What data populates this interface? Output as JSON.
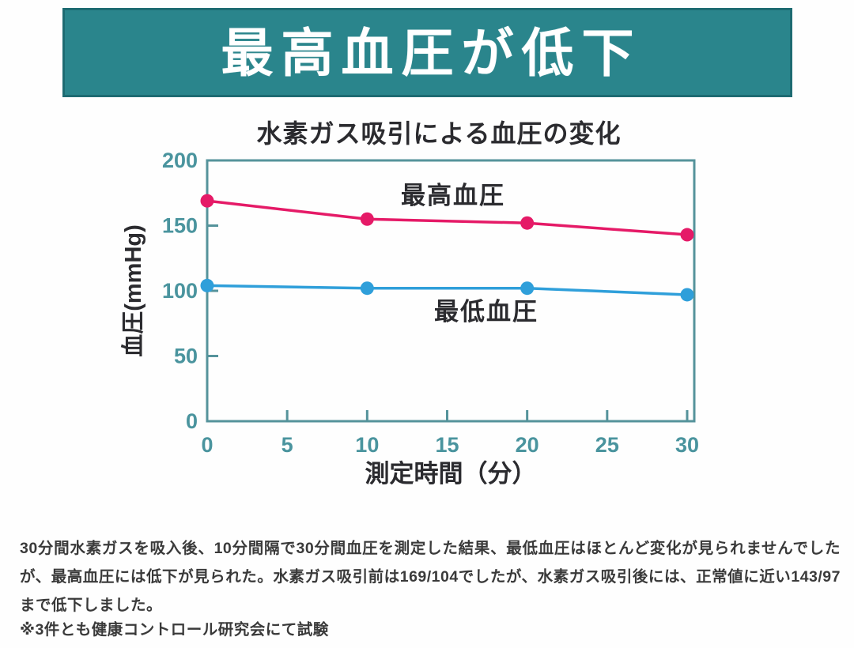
{
  "banner": {
    "title": "最高血圧が低下",
    "bg_color": "#2a858c",
    "border_color": "#1e6b72",
    "text_color": "#ffffff"
  },
  "chart_data": {
    "type": "line",
    "title": "水素ガス吸引による血圧の変化",
    "xlabel": "測定時間（分）",
    "ylabel": "血圧(mmHg)",
    "x": [
      0,
      10,
      20,
      30
    ],
    "xlim": [
      0,
      30
    ],
    "ylim": [
      0,
      200
    ],
    "x_ticks": [
      0,
      5,
      10,
      15,
      20,
      25,
      30
    ],
    "y_ticks": [
      0,
      50,
      100,
      150,
      200
    ],
    "grid": false,
    "legend_position": "inline-labels",
    "axis_color": "#55939b",
    "tick_label_color": "#4a949e",
    "label_color": "#2b2b2f",
    "series": [
      {
        "name": "最高血圧",
        "values": [
          169,
          155,
          152,
          143
        ],
        "color": "#e51a67"
      },
      {
        "name": "最低血圧",
        "values": [
          104,
          102,
          102,
          97
        ],
        "color": "#2f9fda"
      }
    ]
  },
  "description": {
    "text": "30分間水素ガスを吸入後、10分間隔で30分間血圧を測定した結果、最低血圧はほとんど変化が見られませんでしたが、最高血圧には低下が見られた。水素ガス吸引前は169/104でしたが、水素ガス吸引後には、正常値に近い143/97まで低下しました。"
  },
  "footnote": {
    "text": "※3件とも健康コントロール研究会にて試験"
  }
}
